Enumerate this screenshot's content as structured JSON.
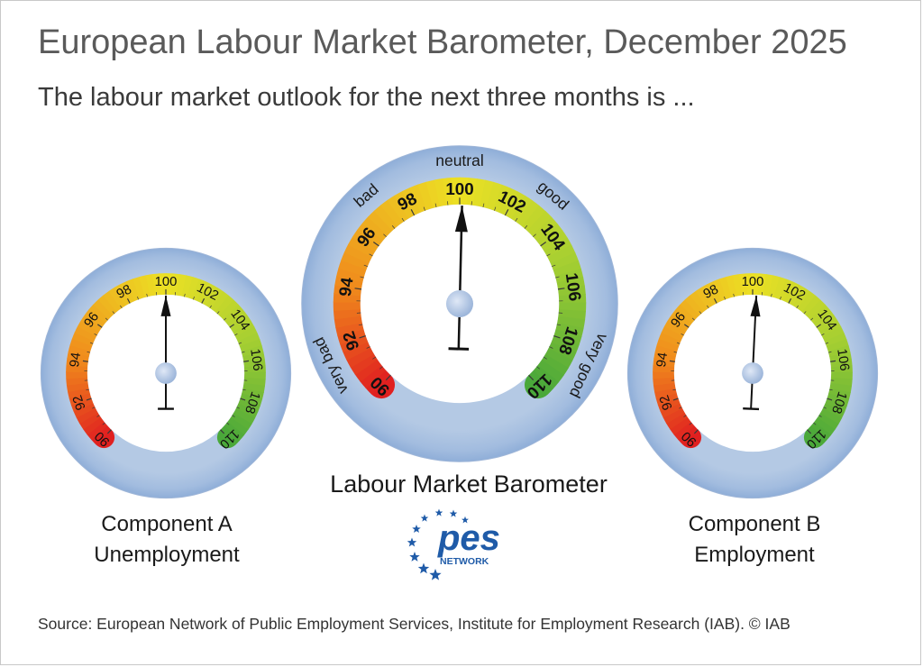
{
  "title": "European Labour Market Barometer, December 2025",
  "subtitle": "The labour market outlook for the next three months is ...",
  "source": "Source: European Network of Public Employment Services, Institute for Employment Research (IAB).  © IAB",
  "logo": {
    "text": "pes",
    "subtext": "NETWORK"
  },
  "colors": {
    "red": "#e02020",
    "orange": "#f08a1c",
    "yellow": "#ece124",
    "green": "#4aa83a",
    "ring": "#b4c9e4"
  },
  "chart_data": [
    {
      "type": "gauge",
      "name": "Labour Market Barometer",
      "caption_lines": [
        "Labour Market Barometer"
      ],
      "value": 100.1,
      "range": [
        90,
        110
      ],
      "ticks": [
        90,
        92,
        94,
        96,
        98,
        100,
        102,
        104,
        106,
        108,
        110
      ],
      "zones": [
        "very bad",
        "bad",
        "neutral",
        "good",
        "very good"
      ]
    },
    {
      "type": "gauge",
      "name": "Component A Unemployment",
      "caption_lines": [
        "Component A",
        "Unemployment"
      ],
      "value": 100.0,
      "range": [
        90,
        110
      ],
      "ticks": [
        90,
        92,
        94,
        96,
        98,
        100,
        102,
        104,
        106,
        108,
        110
      ]
    },
    {
      "type": "gauge",
      "name": "Component B Employment",
      "caption_lines": [
        "Component B",
        "Employment"
      ],
      "value": 100.2,
      "range": [
        90,
        110
      ],
      "ticks": [
        90,
        92,
        94,
        96,
        98,
        100,
        102,
        104,
        106,
        108,
        110
      ]
    }
  ]
}
